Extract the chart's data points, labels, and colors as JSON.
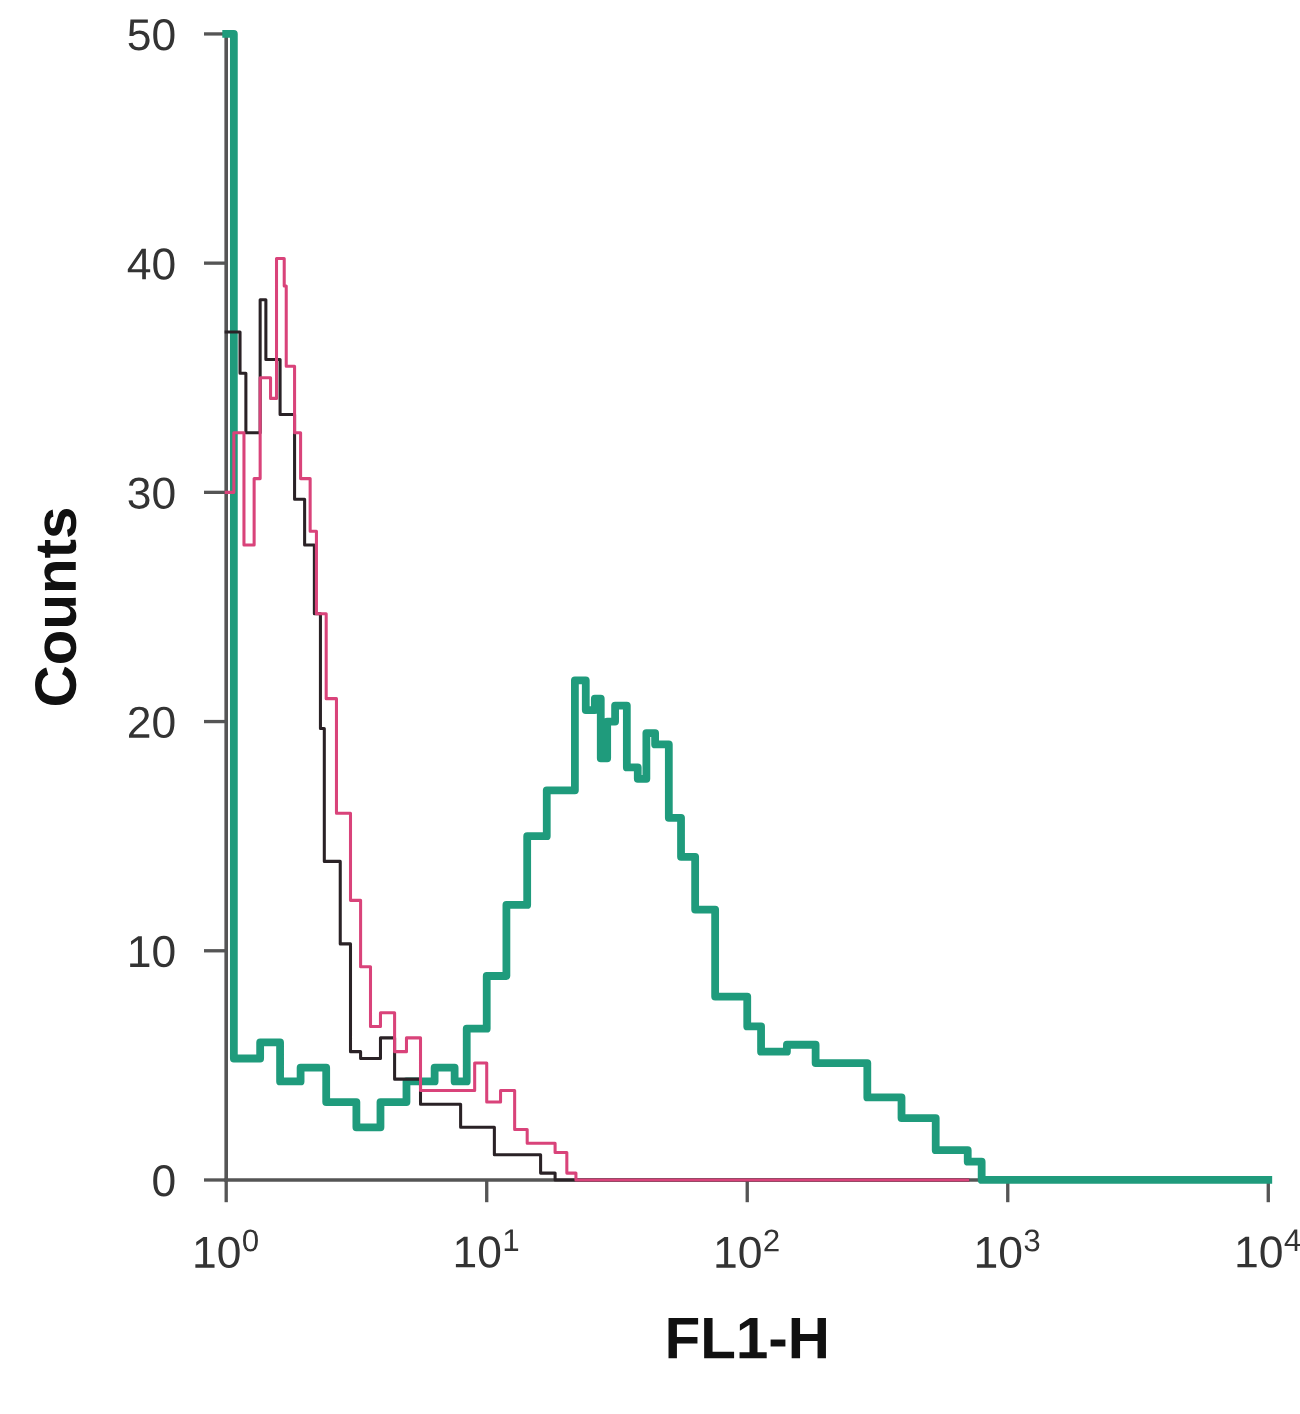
{
  "chart_data": {
    "type": "step",
    "xlabel": "FL1-H",
    "ylabel": "Counts",
    "log": "x",
    "xlim": [
      1,
      10000
    ],
    "ylim": [
      0,
      50
    ],
    "xticks": [
      {
        "value": 1,
        "label": "10$^{0}$"
      },
      {
        "value": 10,
        "label": "10$^{1}$"
      },
      {
        "value": 100,
        "label": "10$^{2}$"
      },
      {
        "value": 1000,
        "label": "10$^{3}$"
      },
      {
        "value": 10000,
        "label": "10$^{4}$"
      }
    ],
    "yticks": [
      0,
      10,
      20,
      30,
      40,
      50
    ],
    "line_style": "solid",
    "series": [
      {
        "color": "#1f9b7c",
        "x": [
          1,
          1.07,
          1.35,
          1.61,
          1.93,
          2.42,
          3.16,
          3.91,
          4.92,
          6.31,
          7.53,
          8.38,
          10,
          11.9,
          14.3,
          17,
          21.8,
          24,
          26,
          27.4,
          29,
          31.1,
          34.5,
          38,
          41,
          44.3,
          50,
          55.7,
          63.1,
          75.3,
          100,
          113,
          142,
          183,
          230,
          289,
          391,
          529,
          702,
          794,
          10000
        ],
        "values": [
          50,
          5.3,
          6.0,
          4.3,
          4.9,
          3.4,
          2.3,
          3.4,
          4.3,
          4.9,
          4.3,
          6.6,
          8.9,
          12,
          15,
          17,
          21.8,
          20.5,
          21,
          18.4,
          20,
          20.7,
          18,
          17.5,
          19.5,
          19,
          15.8,
          14.1,
          11.8,
          8,
          6.7,
          5.6,
          5.9,
          5.1,
          5.1,
          3.6,
          2.7,
          1.3,
          0.8,
          0,
          0
        ]
      },
      {
        "color": "#2a2226",
        "x": [
          1,
          1.13,
          1.19,
          1.35,
          1.42,
          1.61,
          1.83,
          2.0,
          2.18,
          2.3,
          2.38,
          2.74,
          3.0,
          3.28,
          3.91,
          4.43,
          5.57,
          7.94,
          10.7,
          16.1,
          18.3,
          702
        ],
        "values": [
          37,
          35.2,
          32.6,
          38.4,
          35.8,
          33.4,
          29.7,
          27.7,
          24.7,
          19.7,
          13.9,
          10.3,
          5.6,
          5.3,
          6.2,
          4.4,
          3.3,
          2.3,
          1.1,
          0.3,
          0,
          0
        ]
      },
      {
        "color": "#d9437a",
        "x": [
          1,
          1.07,
          1.17,
          1.28,
          1.35,
          1.48,
          1.56,
          1.67,
          1.7,
          1.83,
          1.93,
          2.1,
          2.22,
          2.42,
          2.65,
          3.0,
          3.28,
          3.58,
          3.91,
          4.43,
          4.92,
          5.57,
          7.02,
          8.99,
          10,
          11.3,
          12.8,
          14.3,
          18.3,
          20.3,
          22,
          702
        ],
        "values": [
          30,
          32.6,
          27.7,
          30.6,
          35,
          34.1,
          40.2,
          39,
          35.5,
          32.6,
          30.6,
          28.3,
          24.7,
          21,
          16,
          12.2,
          9.3,
          6.7,
          7.3,
          5.6,
          6.2,
          3.9,
          3.9,
          5.1,
          3.4,
          3.9,
          2.2,
          1.6,
          1.2,
          0.3,
          0,
          0
        ]
      }
    ]
  }
}
